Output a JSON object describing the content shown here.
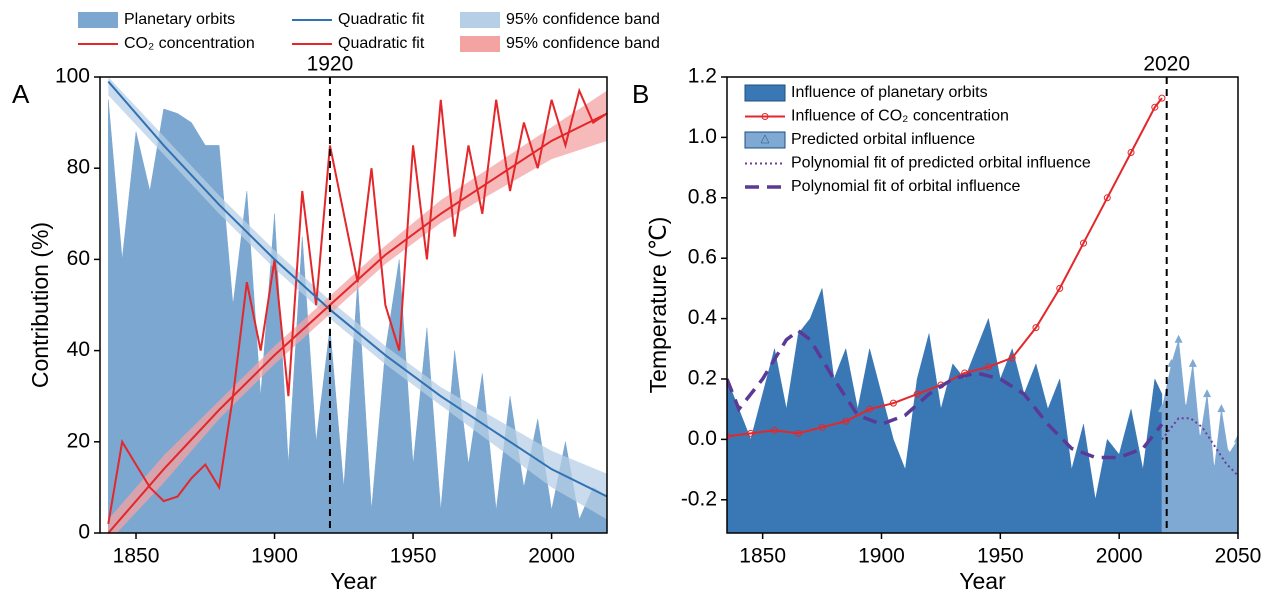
{
  "chart_data": [
    {
      "type": "area",
      "panel_label": "A",
      "x_label": "Year",
      "y_label": "Contribution (%)",
      "xlim": [
        1837,
        2020
      ],
      "xticks": [
        1850,
        1900,
        1950,
        2000
      ],
      "ylim": [
        0,
        100
      ],
      "yticks": [
        0,
        20,
        40,
        60,
        80,
        100
      ],
      "vline": 1920,
      "legend": "top",
      "series": [
        {
          "name": "Planetary orbits",
          "kind": "area",
          "color": "#7ba7d0",
          "x": [
            1840,
            1845,
            1850,
            1855,
            1860,
            1865,
            1870,
            1875,
            1880,
            1885,
            1890,
            1895,
            1900,
            1905,
            1910,
            1915,
            1920,
            1925,
            1930,
            1935,
            1940,
            1945,
            1950,
            1955,
            1960,
            1965,
            1970,
            1975,
            1980,
            1985,
            1990,
            1995,
            2000,
            2005,
            2010,
            2015,
            2020
          ],
          "values": [
            95,
            60,
            88,
            75,
            93,
            92,
            90,
            85,
            85,
            50,
            75,
            30,
            70,
            15,
            65,
            20,
            45,
            10,
            55,
            5,
            40,
            60,
            15,
            45,
            5,
            40,
            15,
            35,
            5,
            30,
            10,
            25,
            5,
            20,
            3,
            10,
            8
          ]
        },
        {
          "name": "CO₂ concentration",
          "kind": "line",
          "color": "#e3272a",
          "x": [
            1840,
            1845,
            1850,
            1855,
            1860,
            1865,
            1870,
            1875,
            1880,
            1885,
            1890,
            1895,
            1900,
            1905,
            1910,
            1915,
            1920,
            1925,
            1930,
            1935,
            1940,
            1945,
            1950,
            1955,
            1960,
            1965,
            1970,
            1975,
            1980,
            1985,
            1990,
            1995,
            2000,
            2005,
            2010,
            2015,
            2020
          ],
          "values": [
            2,
            20,
            15,
            10,
            7,
            8,
            12,
            15,
            10,
            30,
            55,
            40,
            60,
            30,
            75,
            50,
            85,
            70,
            55,
            80,
            50,
            40,
            85,
            60,
            95,
            65,
            85,
            70,
            95,
            75,
            90,
            80,
            95,
            85,
            97,
            90,
            92
          ]
        },
        {
          "name": "Quadratic fit",
          "kind": "line",
          "color": "#2f72b3",
          "x": [
            1840,
            1860,
            1880,
            1900,
            1920,
            1940,
            1960,
            1980,
            2000,
            2020
          ],
          "values": [
            99,
            85,
            72,
            60,
            49,
            39,
            30,
            22,
            14,
            8
          ]
        },
        {
          "name": "Quadratic fit",
          "kind": "line",
          "color": "#e3272a",
          "x": [
            1840,
            1860,
            1880,
            1900,
            1920,
            1940,
            1960,
            1980,
            2000,
            2020
          ],
          "values": [
            0,
            14,
            27,
            39,
            50,
            61,
            70,
            78,
            86,
            92
          ]
        },
        {
          "name": "95% confidence band",
          "kind": "band",
          "color": "#b7cfe6",
          "x": [
            1840,
            1860,
            1880,
            1900,
            1920,
            1940,
            1960,
            1980,
            2000,
            2020
          ],
          "lower": [
            96,
            83,
            70,
            58,
            47,
            37,
            28,
            19,
            10,
            3
          ],
          "upper": [
            100,
            87,
            74,
            62,
            51,
            41,
            32,
            25,
            18,
            13
          ]
        },
        {
          "name": "95% confidence band",
          "kind": "band",
          "color": "#f4a3a3",
          "x": [
            1840,
            1860,
            1880,
            1900,
            1920,
            1940,
            1960,
            1980,
            2000,
            2020
          ],
          "lower": [
            -2,
            11,
            25,
            37,
            48,
            59,
            68,
            75,
            82,
            86
          ],
          "upper": [
            3,
            17,
            29,
            41,
            52,
            63,
            73,
            81,
            89,
            97
          ]
        }
      ]
    },
    {
      "type": "area",
      "panel_label": "B",
      "x_label": "Year",
      "y_label": "Temperature (℃)",
      "xlim": [
        1835,
        2050
      ],
      "xticks": [
        1850,
        1900,
        1950,
        2000,
        2050
      ],
      "ylim": [
        -0.31,
        1.2
      ],
      "yticks": [
        -0.2,
        {
          "value": 0,
          "label": "0.0"
        },
        0.2,
        0.4,
        0.6,
        0.8,
        {
          "value": 1,
          "label": "1.0"
        },
        1.2
      ],
      "vline": 2020,
      "legend": "upper left",
      "series": [
        {
          "name": "Influence of planetary orbits",
          "kind": "area",
          "color": "#3a78b5",
          "x": [
            1835,
            1840,
            1845,
            1850,
            1855,
            1860,
            1865,
            1870,
            1875,
            1880,
            1885,
            1890,
            1895,
            1900,
            1905,
            1910,
            1915,
            1920,
            1925,
            1930,
            1935,
            1940,
            1945,
            1950,
            1955,
            1960,
            1965,
            1970,
            1975,
            1980,
            1985,
            1990,
            1995,
            2000,
            2005,
            2010,
            2015,
            2018
          ],
          "values": [
            0.2,
            0.1,
            0.0,
            0.15,
            0.3,
            0.1,
            0.35,
            0.4,
            0.5,
            0.2,
            0.3,
            0.1,
            0.3,
            0.15,
            0.0,
            -0.1,
            0.2,
            0.35,
            0.1,
            0.25,
            0.2,
            0.3,
            0.4,
            0.2,
            0.3,
            0.15,
            0.25,
            0.1,
            0.2,
            -0.1,
            0.05,
            -0.2,
            0.0,
            -0.05,
            0.1,
            -0.1,
            0.2,
            0.15
          ]
        },
        {
          "name": "Influence of CO₂ concentration",
          "kind": "line",
          "marker": "circle",
          "color": "#e3272a",
          "x": [
            1835,
            1845,
            1855,
            1865,
            1875,
            1885,
            1895,
            1905,
            1915,
            1925,
            1935,
            1945,
            1955,
            1965,
            1975,
            1985,
            1995,
            2005,
            2015,
            2018
          ],
          "values": [
            0.01,
            0.02,
            0.03,
            0.02,
            0.04,
            0.06,
            0.1,
            0.12,
            0.15,
            0.18,
            0.22,
            0.24,
            0.27,
            0.37,
            0.5,
            0.65,
            0.8,
            0.95,
            1.1,
            1.13
          ]
        },
        {
          "name": "Predicted orbital influence",
          "kind": "area",
          "marker": "triangle",
          "color": "#7fa9d3",
          "x": [
            2018,
            2022,
            2025,
            2028,
            2031,
            2034,
            2037,
            2040,
            2043,
            2046,
            2050
          ],
          "values": [
            0.1,
            0.25,
            0.33,
            0.1,
            0.25,
            0.0,
            0.15,
            -0.1,
            0.1,
            -0.05,
            0.0
          ]
        },
        {
          "name": "Polynomial fit of predicted orbital influence",
          "kind": "line",
          "dash": "dotted",
          "color": "#6a3d9a",
          "x": [
            2018,
            2025,
            2030,
            2035,
            2040,
            2045,
            2050
          ],
          "values": [
            0.0,
            0.07,
            0.07,
            0.04,
            -0.02,
            -0.08,
            -0.12
          ]
        },
        {
          "name": "Polynomial fit of orbital influence",
          "kind": "line",
          "dash": "dashed",
          "color": "#5b3a96",
          "x": [
            1835,
            1840,
            1850,
            1860,
            1865,
            1870,
            1880,
            1890,
            1900,
            1910,
            1920,
            1930,
            1940,
            1950,
            1960,
            1970,
            1980,
            1990,
            2000,
            2010,
            2018
          ],
          "values": [
            0.2,
            0.1,
            0.2,
            0.33,
            0.36,
            0.33,
            0.2,
            0.08,
            0.05,
            0.08,
            0.15,
            0.2,
            0.22,
            0.2,
            0.15,
            0.05,
            -0.03,
            -0.06,
            -0.06,
            -0.03,
            0.05
          ]
        }
      ]
    }
  ]
}
